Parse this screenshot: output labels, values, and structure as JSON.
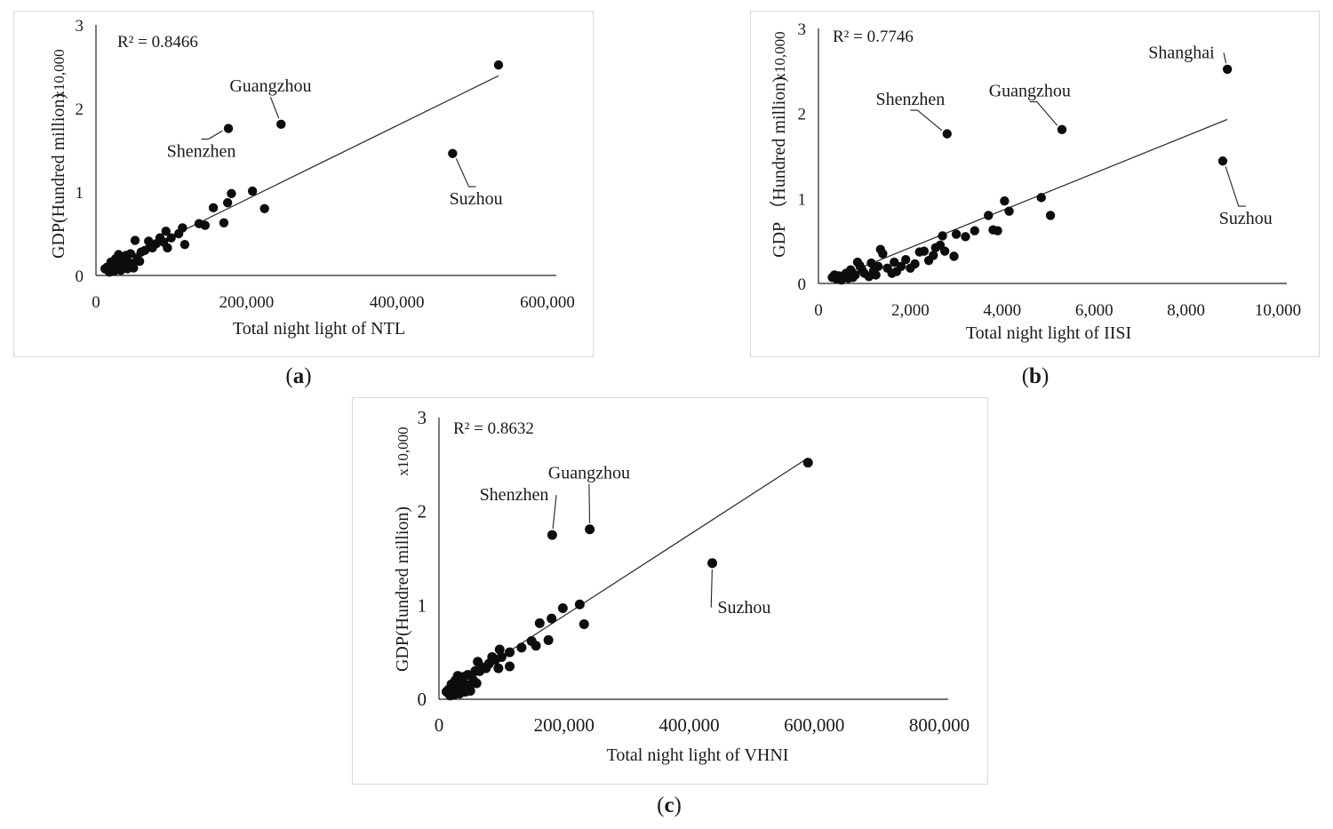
{
  "captions": {
    "a": {
      "open": "(",
      "letter": "a",
      "close": ")"
    },
    "b": {
      "open": "(",
      "letter": "b",
      "close": ")"
    },
    "c": {
      "open": "(",
      "letter": "c",
      "close": ")"
    }
  },
  "chart_data": [
    {
      "id": "a",
      "type": "scatter",
      "title": "",
      "xlabel": "Total night light  of  NTL",
      "ylabel": "GDP(Hundred million)",
      "ymultiplier": "x10,000",
      "r2_label": "R² = 0.8466",
      "xlim": [
        0,
        600000
      ],
      "ylim": [
        0,
        3
      ],
      "xticks": [
        0,
        200000,
        400000,
        600000
      ],
      "xtick_labels": [
        "0",
        "200,000",
        "400,000",
        "600,000"
      ],
      "yticks": [
        0,
        1,
        2,
        3
      ],
      "ytick_labels": [
        "0",
        "1",
        "2",
        "3"
      ],
      "trendline": [
        [
          10000,
          0.07
        ],
        [
          535000,
          2.39
        ]
      ],
      "annotations": [
        {
          "text": "Guangzhou",
          "x": 246000,
          "y": 1.81,
          "label_x": 232000,
          "label_y": 2.2
        },
        {
          "text": "Shenzhen",
          "x": 176000,
          "y": 1.76,
          "label_x": 140000,
          "label_y": 1.42
        },
        {
          "text": "Suzhou",
          "x": 474000,
          "y": 1.46,
          "label_x": 505000,
          "label_y": 0.85
        }
      ],
      "points": [
        [
          535000,
          2.52
        ],
        [
          246000,
          1.81
        ],
        [
          176000,
          1.76
        ],
        [
          474000,
          1.46
        ],
        [
          208000,
          1.01
        ],
        [
          180000,
          0.98
        ],
        [
          224000,
          0.8
        ],
        [
          156000,
          0.81
        ],
        [
          175000,
          0.87
        ],
        [
          170000,
          0.63
        ],
        [
          137000,
          0.62
        ],
        [
          145000,
          0.6
        ],
        [
          115000,
          0.57
        ],
        [
          110000,
          0.5
        ],
        [
          118000,
          0.37
        ],
        [
          93000,
          0.53
        ],
        [
          90000,
          0.4
        ],
        [
          85000,
          0.45
        ],
        [
          80000,
          0.38
        ],
        [
          75000,
          0.33
        ],
        [
          70000,
          0.41
        ],
        [
          95000,
          0.33
        ],
        [
          52000,
          0.42
        ],
        [
          60000,
          0.28
        ],
        [
          55000,
          0.2
        ],
        [
          45000,
          0.15
        ],
        [
          40000,
          0.24
        ],
        [
          35000,
          0.18
        ],
        [
          30000,
          0.25
        ],
        [
          25000,
          0.1
        ],
        [
          22000,
          0.07
        ],
        [
          28000,
          0.14
        ],
        [
          33000,
          0.06
        ],
        [
          15000,
          0.1
        ],
        [
          18000,
          0.04
        ],
        [
          12000,
          0.08
        ],
        [
          20000,
          0.16
        ],
        [
          38000,
          0.1
        ],
        [
          42000,
          0.08
        ],
        [
          48000,
          0.13
        ],
        [
          50000,
          0.09
        ],
        [
          26000,
          0.2
        ],
        [
          65000,
          0.3
        ],
        [
          72000,
          0.34
        ],
        [
          100000,
          0.45
        ],
        [
          24000,
          0.05
        ],
        [
          32000,
          0.12
        ],
        [
          36000,
          0.21
        ],
        [
          16000,
          0.06
        ],
        [
          46000,
          0.26
        ],
        [
          58000,
          0.17
        ]
      ]
    },
    {
      "id": "b",
      "type": "scatter",
      "title": "",
      "xlabel": "Total night light  of  IISI",
      "ylabel": "GDP （Hundred million)",
      "ymultiplier": "x10,000",
      "r2_label": "R² = 0.7746",
      "xlim": [
        0,
        10000
      ],
      "ylim": [
        0,
        3
      ],
      "xticks": [
        0,
        2000,
        4000,
        6000,
        8000,
        10000
      ],
      "xtick_labels": [
        "0",
        "2,000",
        "4,000",
        "6,000",
        "8,000",
        "10,000"
      ],
      "yticks": [
        0,
        1,
        2,
        3
      ],
      "ytick_labels": [
        "0",
        "1",
        "2",
        "3"
      ],
      "trendline": [
        [
          300,
          0.05
        ],
        [
          8900,
          1.93
        ]
      ],
      "annotations": [
        {
          "text": "Shanghai",
          "x": 8900,
          "y": 2.52,
          "label_x": 7900,
          "label_y": 2.65
        },
        {
          "text": "Guangzhou",
          "x": 5300,
          "y": 1.81,
          "label_x": 4600,
          "label_y": 2.2
        },
        {
          "text": "Shenzhen",
          "x": 2800,
          "y": 1.76,
          "label_x": 2000,
          "label_y": 2.1
        },
        {
          "text": "Suzhou",
          "x": 8800,
          "y": 1.44,
          "label_x": 9300,
          "label_y": 0.7
        }
      ],
      "points": [
        [
          8900,
          2.52
        ],
        [
          5300,
          1.81
        ],
        [
          2800,
          1.76
        ],
        [
          8800,
          1.44
        ],
        [
          4850,
          1.01
        ],
        [
          5050,
          0.8
        ],
        [
          4050,
          0.97
        ],
        [
          4150,
          0.85
        ],
        [
          3700,
          0.8
        ],
        [
          3900,
          0.62
        ],
        [
          3800,
          0.63
        ],
        [
          3400,
          0.62
        ],
        [
          3200,
          0.55
        ],
        [
          3000,
          0.58
        ],
        [
          2950,
          0.32
        ],
        [
          2700,
          0.56
        ],
        [
          2650,
          0.45
        ],
        [
          2550,
          0.42
        ],
        [
          2500,
          0.33
        ],
        [
          2400,
          0.27
        ],
        [
          2300,
          0.38
        ],
        [
          2200,
          0.37
        ],
        [
          2100,
          0.23
        ],
        [
          1900,
          0.28
        ],
        [
          1800,
          0.2
        ],
        [
          1700,
          0.14
        ],
        [
          1650,
          0.25
        ],
        [
          1500,
          0.18
        ],
        [
          1400,
          0.35
        ],
        [
          1350,
          0.4
        ],
        [
          1300,
          0.2
        ],
        [
          1200,
          0.15
        ],
        [
          1150,
          0.24
        ],
        [
          1100,
          0.08
        ],
        [
          1000,
          0.12
        ],
        [
          900,
          0.21
        ],
        [
          850,
          0.25
        ],
        [
          800,
          0.1
        ],
        [
          700,
          0.16
        ],
        [
          650,
          0.06
        ],
        [
          600,
          0.12
        ],
        [
          500,
          0.04
        ],
        [
          450,
          0.09
        ],
        [
          400,
          0.05
        ],
        [
          350,
          0.1
        ],
        [
          300,
          0.07
        ],
        [
          550,
          0.08
        ],
        [
          750,
          0.07
        ],
        [
          950,
          0.16
        ],
        [
          1250,
          0.1
        ],
        [
          1600,
          0.12
        ],
        [
          2000,
          0.18
        ],
        [
          2750,
          0.38
        ]
      ]
    },
    {
      "id": "c",
      "type": "scatter",
      "title": "",
      "xlabel": "Total night light of  VHNI",
      "ylabel": "GDP(Hundred million)",
      "ymultiplier": "x10,000",
      "r2_label": "R² = 0.8632",
      "xlim": [
        0,
        800000
      ],
      "ylim": [
        0,
        3
      ],
      "xticks": [
        0,
        200000,
        400000,
        600000,
        800000
      ],
      "xtick_labels": [
        "0",
        "200,000",
        "400,000",
        "600,000",
        "800,000"
      ],
      "yticks": [
        0,
        1,
        2,
        3
      ],
      "ytick_labels": [
        "0",
        "1",
        "2",
        "3"
      ],
      "trendline": [
        [
          10000,
          0.07
        ],
        [
          590000,
          2.57
        ]
      ],
      "annotations": [
        {
          "text": "Guangzhou",
          "x": 241000,
          "y": 1.81,
          "label_x": 240000,
          "label_y": 2.35
        },
        {
          "text": "Shenzhen",
          "x": 181000,
          "y": 1.75,
          "label_x": 120000,
          "label_y": 2.12
        },
        {
          "text": "Suzhou",
          "x": 437000,
          "y": 1.45,
          "label_x": 488000,
          "label_y": 0.92
        }
      ],
      "points": [
        [
          590000,
          2.52
        ],
        [
          241000,
          1.81
        ],
        [
          181000,
          1.75
        ],
        [
          437000,
          1.45
        ],
        [
          225000,
          1.01
        ],
        [
          198000,
          0.97
        ],
        [
          232000,
          0.8
        ],
        [
          161000,
          0.81
        ],
        [
          180000,
          0.86
        ],
        [
          175000,
          0.63
        ],
        [
          148000,
          0.62
        ],
        [
          155000,
          0.57
        ],
        [
          132000,
          0.55
        ],
        [
          113000,
          0.5
        ],
        [
          113000,
          0.35
        ],
        [
          97000,
          0.53
        ],
        [
          90000,
          0.42
        ],
        [
          85000,
          0.45
        ],
        [
          80000,
          0.38
        ],
        [
          75000,
          0.33
        ],
        [
          62000,
          0.4
        ],
        [
          95000,
          0.33
        ],
        [
          58000,
          0.3
        ],
        [
          55000,
          0.2
        ],
        [
          45000,
          0.15
        ],
        [
          40000,
          0.24
        ],
        [
          35000,
          0.18
        ],
        [
          30000,
          0.25
        ],
        [
          25000,
          0.1
        ],
        [
          22000,
          0.07
        ],
        [
          28000,
          0.14
        ],
        [
          33000,
          0.06
        ],
        [
          15000,
          0.1
        ],
        [
          18000,
          0.04
        ],
        [
          12000,
          0.08
        ],
        [
          20000,
          0.16
        ],
        [
          38000,
          0.1
        ],
        [
          42000,
          0.08
        ],
        [
          48000,
          0.13
        ],
        [
          50000,
          0.09
        ],
        [
          26000,
          0.2
        ],
        [
          65000,
          0.3
        ],
        [
          70000,
          0.34
        ],
        [
          100000,
          0.45
        ],
        [
          24000,
          0.05
        ],
        [
          32000,
          0.12
        ],
        [
          36000,
          0.21
        ],
        [
          16000,
          0.06
        ],
        [
          46000,
          0.26
        ],
        [
          60000,
          0.17
        ]
      ]
    }
  ]
}
